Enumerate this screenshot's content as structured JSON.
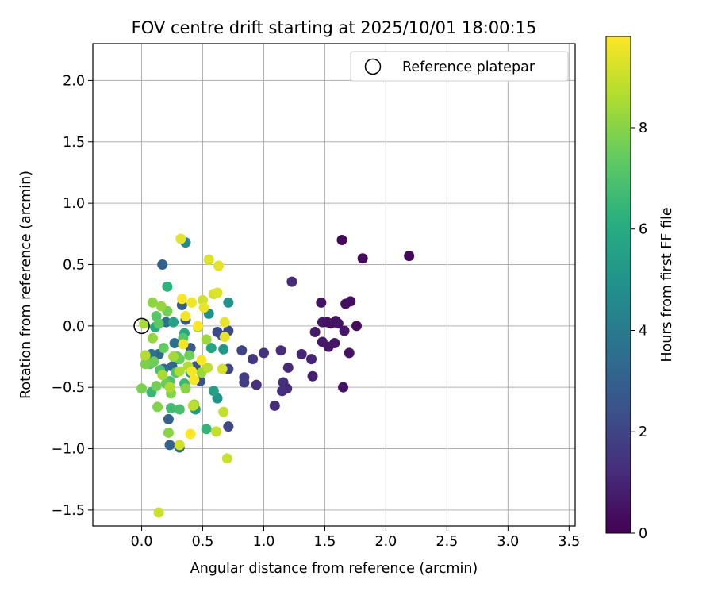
{
  "chart_data": {
    "type": "scatter",
    "title": "FOV centre drift starting at 2025/10/01 18:00:15",
    "xlabel": "Angular distance from reference (arcmin)",
    "ylabel": "Rotation from reference (arcmin)",
    "xlim": [
      -0.4,
      3.55
    ],
    "ylim": [
      -1.63,
      2.3
    ],
    "xticks": [
      0.0,
      0.5,
      1.0,
      1.5,
      2.0,
      2.5,
      3.0,
      3.5
    ],
    "xtick_labels": [
      "0.0",
      "0.5",
      "1.0",
      "1.5",
      "2.0",
      "2.5",
      "3.0",
      "3.5"
    ],
    "yticks": [
      -1.5,
      -1.0,
      -0.5,
      0.0,
      0.5,
      1.0,
      1.5,
      2.0
    ],
    "ytick_labels": [
      "−1.5",
      "−1.0",
      "−0.5",
      "0.0",
      "0.5",
      "1.0",
      "1.5",
      "2.0"
    ],
    "grid": true,
    "legend": {
      "position": "top-right",
      "label": "Reference platepar"
    },
    "reference_point": {
      "x": 0.0,
      "y": 0.0
    },
    "colorbar": {
      "label": "Hours from first FF file",
      "min": 0,
      "max": 9.8,
      "ticks": [
        0,
        2,
        4,
        6,
        8
      ],
      "tick_labels": [
        "0",
        "2",
        "4",
        "6",
        "8"
      ],
      "colormap": "viridis"
    },
    "points": [
      {
        "x": 2.19,
        "y": 0.57,
        "c": 0.2
      },
      {
        "x": 1.64,
        "y": 0.7,
        "c": 0.2
      },
      {
        "x": 1.81,
        "y": 0.55,
        "c": 0.3
      },
      {
        "x": 1.71,
        "y": 0.2,
        "c": 0.4
      },
      {
        "x": 1.67,
        "y": 0.18,
        "c": 0.4
      },
      {
        "x": 1.47,
        "y": 0.19,
        "c": 0.5
      },
      {
        "x": 1.76,
        "y": 0.0,
        "c": 0.3
      },
      {
        "x": 1.55,
        "y": 0.02,
        "c": 0.4
      },
      {
        "x": 1.59,
        "y": 0.04,
        "c": 0.4
      },
      {
        "x": 1.61,
        "y": 0.02,
        "c": 0.5
      },
      {
        "x": 1.48,
        "y": 0.03,
        "c": 0.6
      },
      {
        "x": 1.52,
        "y": 0.03,
        "c": 0.5
      },
      {
        "x": 1.42,
        "y": -0.05,
        "c": 0.7
      },
      {
        "x": 1.66,
        "y": -0.04,
        "c": 0.6
      },
      {
        "x": 1.48,
        "y": -0.13,
        "c": 0.7
      },
      {
        "x": 1.58,
        "y": -0.14,
        "c": 0.6
      },
      {
        "x": 1.53,
        "y": -0.17,
        "c": 0.6
      },
      {
        "x": 1.7,
        "y": -0.22,
        "c": 0.5
      },
      {
        "x": 1.65,
        "y": -0.5,
        "c": 0.5
      },
      {
        "x": 1.4,
        "y": -0.41,
        "c": 0.9
      },
      {
        "x": 1.39,
        "y": -0.27,
        "c": 1.0
      },
      {
        "x": 1.31,
        "y": -0.23,
        "c": 1.0
      },
      {
        "x": 1.23,
        "y": 0.36,
        "c": 1.2
      },
      {
        "x": 1.2,
        "y": -0.34,
        "c": 1.1
      },
      {
        "x": 1.14,
        "y": -0.2,
        "c": 1.2
      },
      {
        "x": 1.16,
        "y": -0.46,
        "c": 1.3
      },
      {
        "x": 1.19,
        "y": -0.51,
        "c": 1.1
      },
      {
        "x": 1.15,
        "y": -0.53,
        "c": 1.3
      },
      {
        "x": 1.09,
        "y": -0.65,
        "c": 1.2
      },
      {
        "x": 1.0,
        "y": -0.22,
        "c": 1.4
      },
      {
        "x": 0.94,
        "y": -0.48,
        "c": 1.3
      },
      {
        "x": 0.91,
        "y": -0.27,
        "c": 1.6
      },
      {
        "x": 0.84,
        "y": -0.42,
        "c": 1.7
      },
      {
        "x": 0.84,
        "y": -0.46,
        "c": 1.8
      },
      {
        "x": 0.82,
        "y": -0.2,
        "c": 2.0
      },
      {
        "x": 0.71,
        "y": -0.35,
        "c": 2.1
      },
      {
        "x": 0.71,
        "y": -0.82,
        "c": 2.1
      },
      {
        "x": 0.71,
        "y": -0.04,
        "c": 2.2
      },
      {
        "x": 0.62,
        "y": -0.05,
        "c": 2.2
      },
      {
        "x": 0.66,
        "y": -0.08,
        "c": 2.3
      },
      {
        "x": 0.48,
        "y": -0.45,
        "c": 2.5
      },
      {
        "x": 0.44,
        "y": -0.33,
        "c": 2.6
      },
      {
        "x": 0.4,
        "y": -0.18,
        "c": 2.7
      },
      {
        "x": 0.36,
        "y": 0.05,
        "c": 2.8
      },
      {
        "x": 0.33,
        "y": 0.17,
        "c": 2.9
      },
      {
        "x": 0.3,
        "y": -0.27,
        "c": 2.9
      },
      {
        "x": 0.17,
        "y": 0.5,
        "c": 3.0
      },
      {
        "x": 0.22,
        "y": -0.76,
        "c": 3.0
      },
      {
        "x": 0.23,
        "y": -0.97,
        "c": 3.1
      },
      {
        "x": 0.31,
        "y": -0.99,
        "c": 3.2
      },
      {
        "x": 0.14,
        "y": -0.23,
        "c": 3.3
      },
      {
        "x": 0.25,
        "y": -0.33,
        "c": 3.3
      },
      {
        "x": 0.18,
        "y": -0.35,
        "c": 3.4
      },
      {
        "x": 0.27,
        "y": -0.14,
        "c": 3.5
      },
      {
        "x": 0.2,
        "y": 0.03,
        "c": 3.6
      },
      {
        "x": 0.08,
        "y": -0.23,
        "c": 3.7
      },
      {
        "x": 0.36,
        "y": 0.68,
        "c": 4.6
      },
      {
        "x": 0.55,
        "y": 0.1,
        "c": 4.9
      },
      {
        "x": 0.71,
        "y": 0.19,
        "c": 5.0
      },
      {
        "x": 0.62,
        "y": -0.59,
        "c": 5.0
      },
      {
        "x": 0.67,
        "y": -0.19,
        "c": 5.2
      },
      {
        "x": 0.44,
        "y": -0.68,
        "c": 5.3
      },
      {
        "x": 0.4,
        "y": -0.38,
        "c": 5.3
      },
      {
        "x": 0.59,
        "y": -0.53,
        "c": 5.5
      },
      {
        "x": 0.26,
        "y": 0.03,
        "c": 5.6
      },
      {
        "x": 0.57,
        "y": -0.18,
        "c": 5.8
      },
      {
        "x": 0.35,
        "y": -0.06,
        "c": 5.8
      },
      {
        "x": 0.11,
        "y": -0.01,
        "c": 6.0
      },
      {
        "x": 0.21,
        "y": 0.32,
        "c": 6.3
      },
      {
        "x": 0.53,
        "y": -0.84,
        "c": 6.4
      },
      {
        "x": 0.08,
        "y": -0.54,
        "c": 6.5
      },
      {
        "x": 0.35,
        "y": -0.47,
        "c": 6.6
      },
      {
        "x": 0.24,
        "y": -0.67,
        "c": 6.7
      },
      {
        "x": 0.31,
        "y": -0.68,
        "c": 6.8
      },
      {
        "x": 0.23,
        "y": -0.45,
        "c": 6.9
      },
      {
        "x": 0.15,
        "y": -0.36,
        "c": 7.0
      },
      {
        "x": 0.28,
        "y": -0.38,
        "c": 7.1
      },
      {
        "x": 0.34,
        "y": -0.1,
        "c": 7.2
      },
      {
        "x": 0.12,
        "y": 0.08,
        "c": 7.2
      },
      {
        "x": 0.07,
        "y": -0.31,
        "c": 7.3
      },
      {
        "x": 0.14,
        "y": 0.02,
        "c": 7.3
      },
      {
        "x": 0.18,
        "y": -0.18,
        "c": 7.4
      },
      {
        "x": 0.29,
        "y": -0.25,
        "c": 7.4
      },
      {
        "x": 0.2,
        "y": -0.47,
        "c": 7.5
      },
      {
        "x": 0.31,
        "y": -0.27,
        "c": 7.5
      },
      {
        "x": 0.1,
        "y": -0.29,
        "c": 7.6
      },
      {
        "x": 0.39,
        "y": -0.24,
        "c": 7.6
      },
      {
        "x": 0.21,
        "y": 0.12,
        "c": 7.7
      },
      {
        "x": 0.12,
        "y": -0.49,
        "c": 7.7
      },
      {
        "x": 0.03,
        "y": -0.31,
        "c": 7.8
      },
      {
        "x": 0.0,
        "y": -0.51,
        "c": 7.8
      },
      {
        "x": 0.13,
        "y": -0.66,
        "c": 7.9
      },
      {
        "x": 0.24,
        "y": -0.55,
        "c": 7.9
      },
      {
        "x": 0.36,
        "y": -0.51,
        "c": 8.0
      },
      {
        "x": 0.22,
        "y": -0.87,
        "c": 8.0
      },
      {
        "x": 0.43,
        "y": -0.64,
        "c": 8.1
      },
      {
        "x": 0.09,
        "y": 0.19,
        "c": 8.1
      },
      {
        "x": 0.16,
        "y": 0.16,
        "c": 8.2
      },
      {
        "x": 0.09,
        "y": -0.1,
        "c": 8.2
      },
      {
        "x": 0.53,
        "y": -0.11,
        "c": 8.3
      },
      {
        "x": 0.49,
        "y": -0.38,
        "c": 8.3
      },
      {
        "x": 0.26,
        "y": -0.25,
        "c": 8.4
      },
      {
        "x": 0.46,
        "y": -0.01,
        "c": 8.4
      },
      {
        "x": 0.17,
        "y": -0.4,
        "c": 8.5
      },
      {
        "x": 0.02,
        "y": 0.02,
        "c": 8.5
      },
      {
        "x": 0.23,
        "y": -0.5,
        "c": 8.6
      },
      {
        "x": 0.31,
        "y": -0.37,
        "c": 8.6
      },
      {
        "x": 0.38,
        "y": -0.33,
        "c": 8.7
      },
      {
        "x": 0.03,
        "y": -0.24,
        "c": 8.7
      },
      {
        "x": 0.42,
        "y": -0.65,
        "c": 8.8
      },
      {
        "x": 0.54,
        "y": -0.34,
        "c": 8.8
      },
      {
        "x": 0.61,
        "y": -0.86,
        "c": 8.9
      },
      {
        "x": 0.67,
        "y": -0.7,
        "c": 8.9
      },
      {
        "x": 0.7,
        "y": -1.08,
        "c": 9.0
      },
      {
        "x": 0.14,
        "y": -1.52,
        "c": 9.0
      },
      {
        "x": 0.31,
        "y": -0.97,
        "c": 9.1
      },
      {
        "x": 0.5,
        "y": 0.21,
        "c": 9.1
      },
      {
        "x": 0.59,
        "y": 0.26,
        "c": 9.2
      },
      {
        "x": 0.66,
        "y": -0.35,
        "c": 9.2
      },
      {
        "x": 0.55,
        "y": 0.54,
        "c": 9.3
      },
      {
        "x": 0.62,
        "y": 0.27,
        "c": 9.3
      },
      {
        "x": 0.32,
        "y": 0.71,
        "c": 9.4
      },
      {
        "x": 0.63,
        "y": 0.49,
        "c": 9.4
      },
      {
        "x": 0.51,
        "y": 0.15,
        "c": 9.5
      },
      {
        "x": 0.68,
        "y": 0.03,
        "c": 9.5
      },
      {
        "x": 0.68,
        "y": -0.09,
        "c": 9.5
      },
      {
        "x": 0.41,
        "y": 0.19,
        "c": 9.6
      },
      {
        "x": 0.36,
        "y": 0.08,
        "c": 9.6
      },
      {
        "x": 0.34,
        "y": -0.15,
        "c": 9.6
      },
      {
        "x": 0.49,
        "y": -0.28,
        "c": 9.7
      },
      {
        "x": 0.41,
        "y": -0.37,
        "c": 9.7
      },
      {
        "x": 0.43,
        "y": -0.44,
        "c": 9.7
      },
      {
        "x": 0.33,
        "y": 0.22,
        "c": 9.8
      },
      {
        "x": 0.46,
        "y": 0.0,
        "c": 9.8
      },
      {
        "x": 0.4,
        "y": -0.88,
        "c": 9.8
      }
    ]
  }
}
